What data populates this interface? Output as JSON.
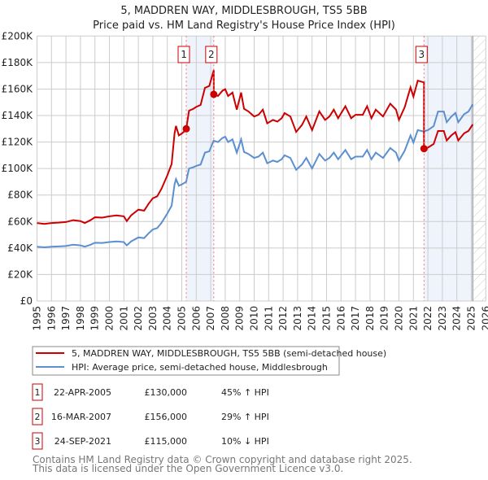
{
  "chart_data": {
    "type": "line",
    "title": "5, MADDREN WAY, MIDDLESBROUGH, TS5 5BB",
    "subtitle": "Price paid vs. HM Land Registry's House Price Index (HPI)",
    "xlim": [
      1995,
      2026
    ],
    "ylim": [
      0,
      200000
    ],
    "x_ticks": [
      "1995",
      "1996",
      "1997",
      "1998",
      "1999",
      "2000",
      "2001",
      "2002",
      "2003",
      "2004",
      "2005",
      "2006",
      "2007",
      "2008",
      "2009",
      "2010",
      "2011",
      "2012",
      "2013",
      "2014",
      "2015",
      "2016",
      "2017",
      "2018",
      "2019",
      "2020",
      "2021",
      "2022",
      "2023",
      "2024",
      "2025",
      "2026"
    ],
    "y_ticks": [
      {
        "v": 0,
        "label": "£0"
      },
      {
        "v": 20000,
        "label": "£20K"
      },
      {
        "v": 40000,
        "label": "£40K"
      },
      {
        "v": 60000,
        "label": "£60K"
      },
      {
        "v": 80000,
        "label": "£80K"
      },
      {
        "v": 100000,
        "label": "£100K"
      },
      {
        "v": 120000,
        "label": "£120K"
      },
      {
        "v": 140000,
        "label": "£140K"
      },
      {
        "v": 160000,
        "label": "£160K"
      },
      {
        "v": 180000,
        "label": "£180K"
      },
      {
        "v": 200000,
        "label": "£200K"
      }
    ],
    "grid": true,
    "forecast_from": 2025.1,
    "series": [
      {
        "name": "5, MADDREN WAY, MIDDLESBROUGH, TS5 5BB (semi-detached house)",
        "color": "#cc0000",
        "derived": "hpi-indexed from sales"
      },
      {
        "name": "HPI: Average price, semi-detached house, Middlesbrough",
        "color": "#5b8fd0",
        "points": [
          [
            1995,
            41000
          ],
          [
            1995.5,
            40500
          ],
          [
            1996,
            41000
          ],
          [
            1996.5,
            41200
          ],
          [
            1997,
            41500
          ],
          [
            1997.5,
            42500
          ],
          [
            1998,
            42000
          ],
          [
            1998.3,
            41000
          ],
          [
            1998.7,
            42500
          ],
          [
            1999,
            44000
          ],
          [
            1999.5,
            43800
          ],
          [
            2000,
            44500
          ],
          [
            2000.5,
            45000
          ],
          [
            2001,
            44500
          ],
          [
            2001.2,
            42000
          ],
          [
            2001.5,
            45000
          ],
          [
            2002,
            48000
          ],
          [
            2002.4,
            47500
          ],
          [
            2002.7,
            51000
          ],
          [
            2003,
            54000
          ],
          [
            2003.3,
            55000
          ],
          [
            2003.6,
            59000
          ],
          [
            2004,
            66000
          ],
          [
            2004.3,
            72000
          ],
          [
            2004.5,
            88000
          ],
          [
            2004.6,
            92000
          ],
          [
            2004.8,
            87000
          ],
          [
            2005,
            88000
          ],
          [
            2005.3,
            90000
          ],
          [
            2005.5,
            100000
          ],
          [
            2005.8,
            101000
          ],
          [
            2006,
            102000
          ],
          [
            2006.3,
            103000
          ],
          [
            2006.6,
            112000
          ],
          [
            2006.9,
            113000
          ],
          [
            2007.2,
            121000
          ],
          [
            2007.5,
            120000
          ],
          [
            2007.8,
            123000
          ],
          [
            2008,
            124000
          ],
          [
            2008.2,
            120000
          ],
          [
            2008.5,
            122000
          ],
          [
            2008.8,
            112000
          ],
          [
            2009.1,
            122000
          ],
          [
            2009.3,
            112500
          ],
          [
            2009.6,
            111000
          ],
          [
            2010,
            108000
          ],
          [
            2010.3,
            109000
          ],
          [
            2010.6,
            112000
          ],
          [
            2010.9,
            104000
          ],
          [
            2011.3,
            106000
          ],
          [
            2011.6,
            105000
          ],
          [
            2011.9,
            107000
          ],
          [
            2012.1,
            110000
          ],
          [
            2012.5,
            108000
          ],
          [
            2012.9,
            99000
          ],
          [
            2013.3,
            103000
          ],
          [
            2013.6,
            108000
          ],
          [
            2014,
            100000
          ],
          [
            2014.5,
            111000
          ],
          [
            2014.9,
            106000
          ],
          [
            2015.2,
            108000
          ],
          [
            2015.5,
            112000
          ],
          [
            2015.8,
            107000
          ],
          [
            2016.3,
            114000
          ],
          [
            2016.7,
            107000
          ],
          [
            2017,
            109000
          ],
          [
            2017.5,
            109000
          ],
          [
            2017.8,
            114000
          ],
          [
            2018.1,
            107000
          ],
          [
            2018.4,
            112000
          ],
          [
            2018.9,
            108000
          ],
          [
            2019.4,
            115500
          ],
          [
            2019.8,
            112000
          ],
          [
            2020,
            106000
          ],
          [
            2020.4,
            113500
          ],
          [
            2020.8,
            125000
          ],
          [
            2021,
            119600
          ],
          [
            2021.3,
            129000
          ],
          [
            2021.7,
            128000
          ],
          [
            2022,
            129000
          ],
          [
            2022.4,
            132000
          ],
          [
            2022.7,
            143000
          ],
          [
            2023.1,
            143000
          ],
          [
            2023.3,
            135000
          ],
          [
            2023.6,
            139000
          ],
          [
            2023.9,
            142000
          ],
          [
            2024.1,
            135000
          ],
          [
            2024.5,
            141000
          ],
          [
            2024.8,
            143000
          ],
          [
            2025.1,
            148500
          ]
        ]
      }
    ],
    "sales": [
      {
        "id": "1",
        "year": 2005.31,
        "date": "22-APR-2005",
        "price": 130000,
        "price_label": "£130,000",
        "hpi_diff": "45% ↑ HPI"
      },
      {
        "id": "2",
        "year": 2007.21,
        "date": "16-MAR-2007",
        "price": 156000,
        "price_label": "£156,000",
        "hpi_diff": "29% ↑ HPI"
      },
      {
        "id": "3",
        "year": 2021.73,
        "date": "24-SEP-2021",
        "price": 115000,
        "price_label": "£115,000",
        "hpi_diff": "10% ↓ HPI"
      }
    ]
  },
  "legend": {
    "property": "5, MADDREN WAY, MIDDLESBROUGH, TS5 5BB (semi-detached house)",
    "hpi": "HPI: Average price, semi-detached house, Middlesbrough"
  },
  "footer": {
    "line1": "Contains HM Land Registry data © Crown copyright and database right 2025.",
    "line2": "This data is licensed under the Open Government Licence v3.0."
  },
  "colors": {
    "red": "#cc0000",
    "blue": "#5b8fd0",
    "grid": "#cccccc",
    "shade": "#eef3fc"
  }
}
